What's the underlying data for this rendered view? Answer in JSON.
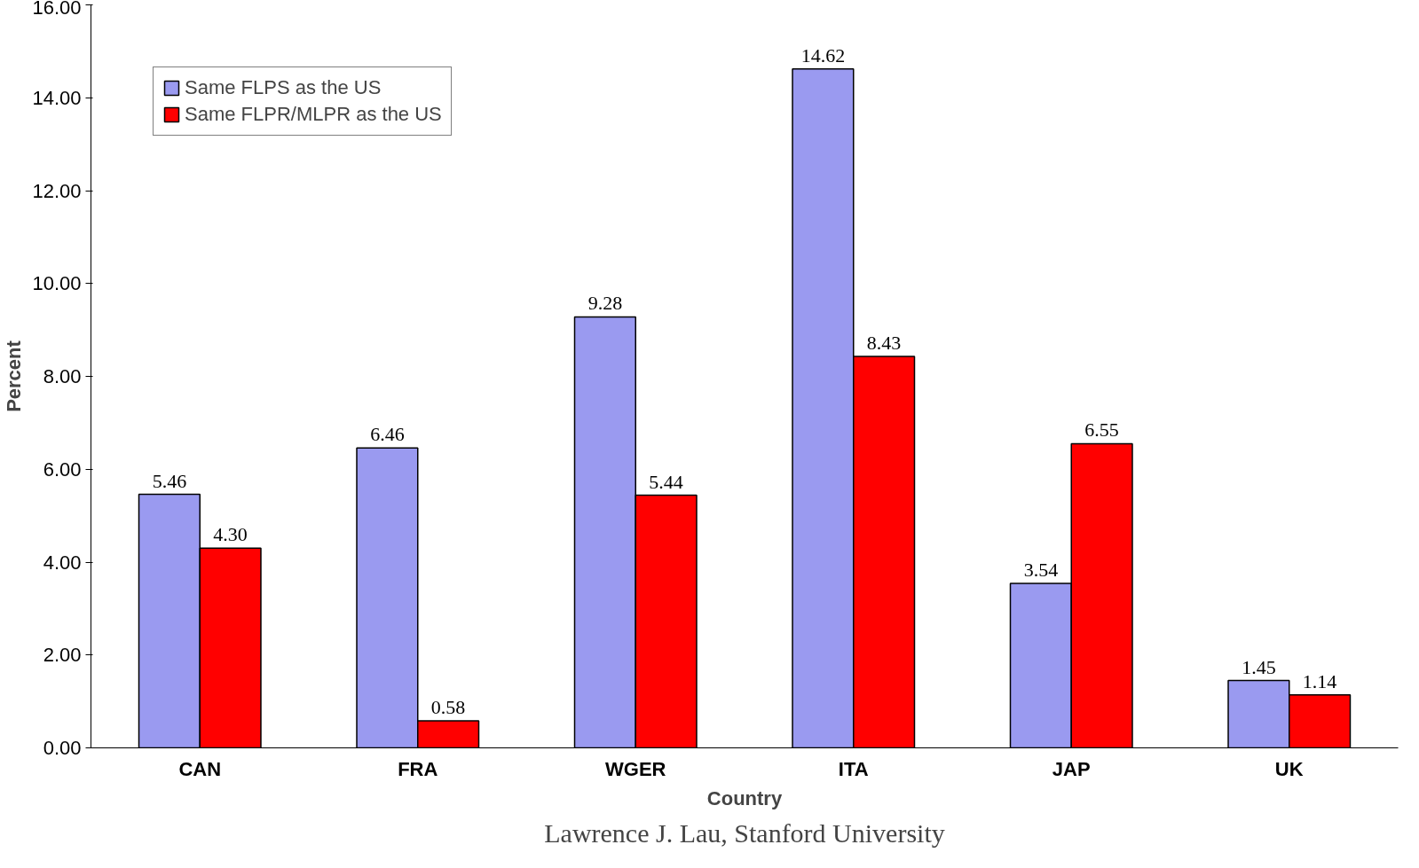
{
  "chart_data": {
    "type": "bar",
    "xlabel": "Country",
    "ylabel": "Percent",
    "categories": [
      "CAN",
      "FRA",
      "WGER",
      "ITA",
      "JAP",
      "UK"
    ],
    "series": [
      {
        "name": "Same FLPS as the US",
        "color": "#9a9af0",
        "values": [
          5.46,
          6.46,
          9.28,
          14.62,
          3.54,
          1.45
        ],
        "value_labels": [
          "5.46",
          "6.46",
          "9.28",
          "14.62",
          "3.54",
          "1.45"
        ]
      },
      {
        "name": "Same FLPR/MLPR as the US",
        "color": "#ff0000",
        "values": [
          4.3,
          0.58,
          5.44,
          8.43,
          6.55,
          1.14
        ],
        "value_labels": [
          "4.30",
          "0.58",
          "5.44",
          "8.43",
          "6.55",
          "1.14"
        ]
      }
    ],
    "ylim": [
      0,
      16
    ],
    "yticks": [
      {
        "value": 0,
        "label": "0.00"
      },
      {
        "value": 2,
        "label": "2.00"
      },
      {
        "value": 4,
        "label": "4.00"
      },
      {
        "value": 6,
        "label": "6.00"
      },
      {
        "value": 8,
        "label": "8.00"
      },
      {
        "value": 10,
        "label": "10.00"
      },
      {
        "value": 12,
        "label": "12.00"
      },
      {
        "value": 14,
        "label": "14.00"
      },
      {
        "value": 16,
        "label": "16.00"
      }
    ],
    "grid": false,
    "legend": "top left",
    "annotations": [
      "Lawrence J. Lau, Stanford University"
    ]
  }
}
